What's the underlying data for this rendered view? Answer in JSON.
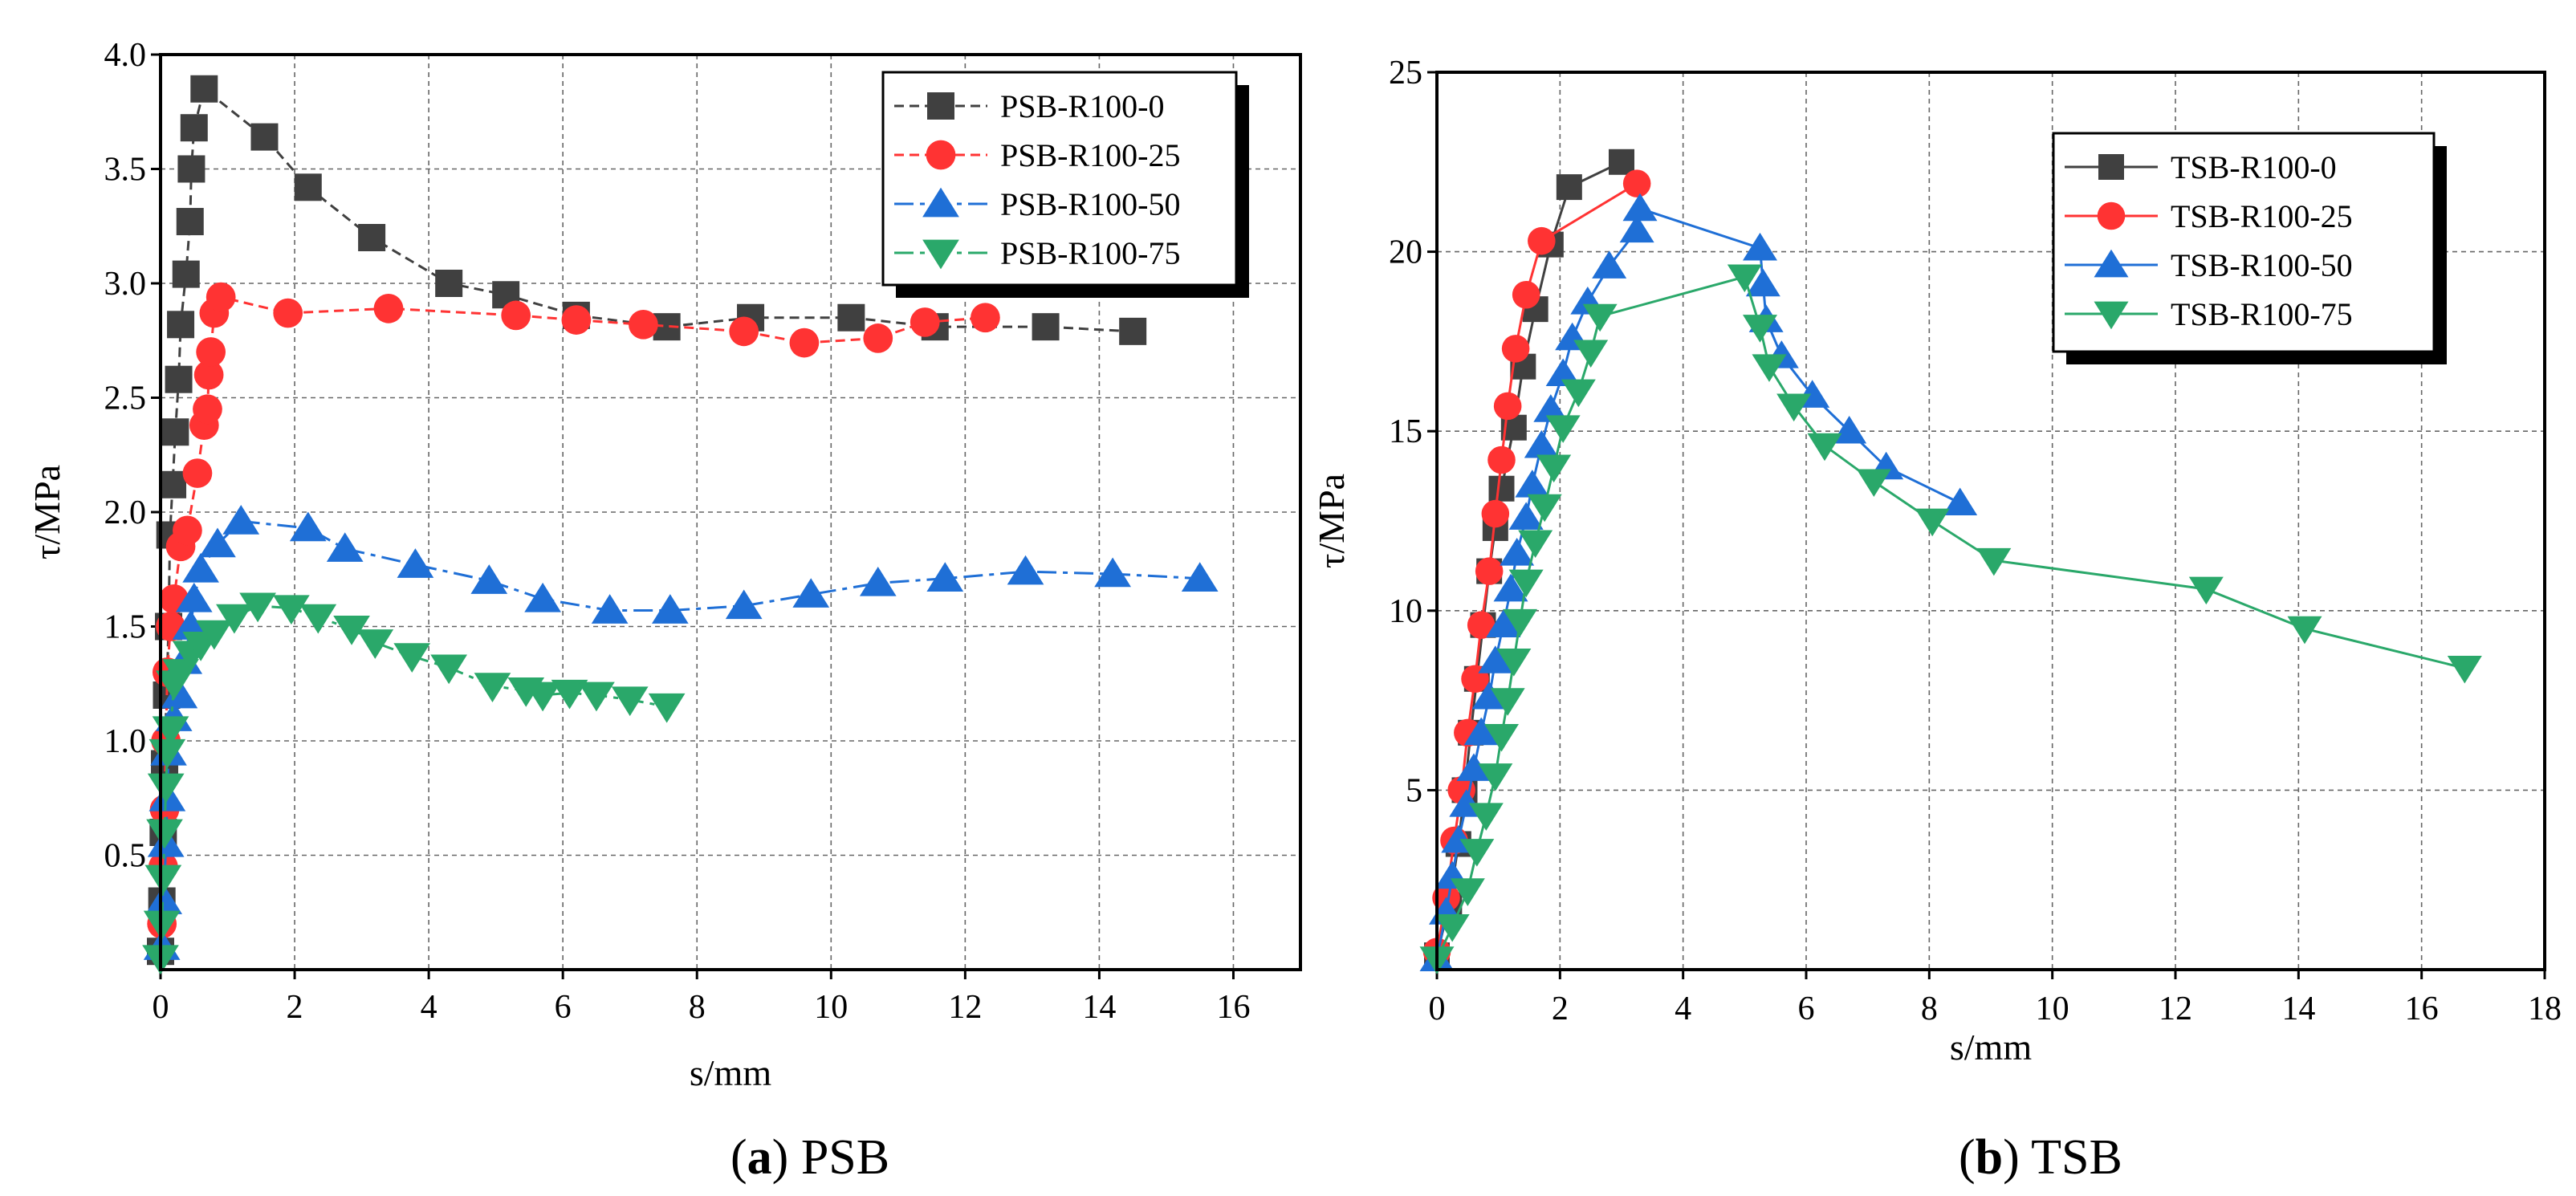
{
  "chart_data": [
    {
      "type": "line",
      "xlabel": "s/mm",
      "ylabel": "τ/MPa",
      "xlim": [
        0,
        17
      ],
      "ylim": [
        0,
        4.0
      ],
      "xticks": [
        "0",
        "2",
        "4",
        "6",
        "8",
        "10",
        "12",
        "14",
        "16"
      ],
      "yticks": [
        "0.5",
        "1.0",
        "1.5",
        "2.0",
        "2.5",
        "3.0",
        "3.5",
        "4.0"
      ],
      "grid": true,
      "legend_position": "top-right",
      "caption": {
        "letter": "a",
        "text": " PSB"
      },
      "series": [
        {
          "name": "PSB-R100-0",
          "color": "#404040",
          "marker": "square",
          "dash": "12 7",
          "points": [
            [
              0.0,
              0.08
            ],
            [
              0.02,
              0.3
            ],
            [
              0.04,
              0.6
            ],
            [
              0.06,
              0.9
            ],
            [
              0.09,
              1.2
            ],
            [
              0.12,
              1.5
            ],
            [
              0.14,
              1.9
            ],
            [
              0.18,
              2.12
            ],
            [
              0.22,
              2.35
            ],
            [
              0.27,
              2.58
            ],
            [
              0.3,
              2.82
            ],
            [
              0.38,
              3.04
            ],
            [
              0.44,
              3.27
            ],
            [
              0.46,
              3.5
            ],
            [
              0.5,
              3.68
            ],
            [
              0.65,
              3.85
            ],
            [
              1.55,
              3.64
            ],
            [
              2.2,
              3.42
            ],
            [
              3.15,
              3.2
            ],
            [
              4.3,
              3.0
            ],
            [
              5.15,
              2.95
            ],
            [
              6.2,
              2.86
            ],
            [
              7.55,
              2.81
            ],
            [
              8.8,
              2.85
            ],
            [
              10.3,
              2.85
            ],
            [
              11.55,
              2.81
            ],
            [
              13.2,
              2.81
            ],
            [
              14.5,
              2.79
            ]
          ]
        },
        {
          "name": "PSB-R100-25",
          "color": "#ff3333",
          "marker": "circle",
          "dash": "12 7",
          "points": [
            [
              0.02,
              0.2
            ],
            [
              0.04,
              0.45
            ],
            [
              0.06,
              0.7
            ],
            [
              0.08,
              1.0
            ],
            [
              0.1,
              1.3
            ],
            [
              0.15,
              1.5
            ],
            [
              0.2,
              1.62
            ],
            [
              0.3,
              1.85
            ],
            [
              0.4,
              1.92
            ],
            [
              0.55,
              2.17
            ],
            [
              0.65,
              2.38
            ],
            [
              0.7,
              2.45
            ],
            [
              0.72,
              2.6
            ],
            [
              0.75,
              2.7
            ],
            [
              0.8,
              2.87
            ],
            [
              0.9,
              2.94
            ],
            [
              1.9,
              2.87
            ],
            [
              3.4,
              2.89
            ],
            [
              5.3,
              2.86
            ],
            [
              6.2,
              2.84
            ],
            [
              7.2,
              2.82
            ],
            [
              8.7,
              2.79
            ],
            [
              9.6,
              2.74
            ],
            [
              10.7,
              2.76
            ],
            [
              11.4,
              2.83
            ],
            [
              12.3,
              2.85
            ]
          ]
        },
        {
          "name": "PSB-R100-50",
          "color": "#1f6fd6",
          "marker": "triangle-up",
          "dash": "24 8 6 8",
          "points": [
            [
              0.02,
              0.1
            ],
            [
              0.05,
              0.3
            ],
            [
              0.08,
              0.55
            ],
            [
              0.1,
              0.75
            ],
            [
              0.12,
              0.95
            ],
            [
              0.2,
              1.1
            ],
            [
              0.28,
              1.2
            ],
            [
              0.35,
              1.35
            ],
            [
              0.45,
              1.5
            ],
            [
              0.5,
              1.62
            ],
            [
              0.6,
              1.75
            ],
            [
              0.85,
              1.86
            ],
            [
              1.2,
              1.96
            ],
            [
              2.2,
              1.93
            ],
            [
              2.75,
              1.84
            ],
            [
              3.8,
              1.77
            ],
            [
              4.9,
              1.7
            ],
            [
              5.7,
              1.62
            ],
            [
              6.7,
              1.57
            ],
            [
              7.6,
              1.57
            ],
            [
              8.7,
              1.59
            ],
            [
              9.7,
              1.64
            ],
            [
              10.7,
              1.69
            ],
            [
              11.7,
              1.71
            ],
            [
              12.9,
              1.74
            ],
            [
              14.2,
              1.73
            ],
            [
              15.5,
              1.71
            ]
          ]
        },
        {
          "name": "PSB-R100-75",
          "color": "#2aa86a",
          "marker": "triangle-down",
          "dash": "24 8 6 8",
          "points": [
            [
              0.0,
              0.05
            ],
            [
              0.02,
              0.2
            ],
            [
              0.04,
              0.4
            ],
            [
              0.06,
              0.6
            ],
            [
              0.08,
              0.8
            ],
            [
              0.1,
              0.95
            ],
            [
              0.15,
              1.05
            ],
            [
              0.2,
              1.25
            ],
            [
              0.3,
              1.3
            ],
            [
              0.45,
              1.38
            ],
            [
              0.6,
              1.42
            ],
            [
              0.8,
              1.47
            ],
            [
              1.1,
              1.54
            ],
            [
              1.45,
              1.59
            ],
            [
              1.95,
              1.58
            ],
            [
              2.35,
              1.54
            ],
            [
              2.85,
              1.49
            ],
            [
              3.2,
              1.43
            ],
            [
              3.75,
              1.37
            ],
            [
              4.3,
              1.32
            ],
            [
              4.95,
              1.24
            ],
            [
              5.45,
              1.22
            ],
            [
              5.7,
              1.2
            ],
            [
              6.1,
              1.21
            ],
            [
              6.5,
              1.2
            ],
            [
              7.0,
              1.18
            ],
            [
              7.55,
              1.15
            ]
          ]
        }
      ]
    },
    {
      "type": "line",
      "xlabel": "s/mm",
      "ylabel": "τ/MPa",
      "xlim": [
        0,
        18
      ],
      "ylim": [
        0,
        25
      ],
      "xticks": [
        "0",
        "2",
        "4",
        "6",
        "8",
        "10",
        "12",
        "14",
        "16",
        "18"
      ],
      "yticks": [
        "5",
        "10",
        "15",
        "20",
        "25"
      ],
      "grid": true,
      "legend_position": "top-right",
      "caption": {
        "letter": "b",
        "text": " TSB"
      },
      "series": [
        {
          "name": "TSB-R100-0",
          "color": "#404040",
          "marker": "square",
          "dash": "",
          "points": [
            [
              0.0,
              0.4
            ],
            [
              0.2,
              1.8
            ],
            [
              0.35,
              3.5
            ],
            [
              0.45,
              5.0
            ],
            [
              0.55,
              6.6
            ],
            [
              0.65,
              8.1
            ],
            [
              0.75,
              9.6
            ],
            [
              0.85,
              11.1
            ],
            [
              0.95,
              12.3
            ],
            [
              1.05,
              13.4
            ],
            [
              1.25,
              15.1
            ],
            [
              1.4,
              16.8
            ],
            [
              1.6,
              18.4
            ],
            [
              1.85,
              20.2
            ],
            [
              2.15,
              21.8
            ],
            [
              3.0,
              22.5
            ]
          ]
        },
        {
          "name": "TSB-R100-25",
          "color": "#ff3333",
          "marker": "circle",
          "dash": "",
          "points": [
            [
              0.0,
              0.5
            ],
            [
              0.15,
              2.0
            ],
            [
              0.28,
              3.6
            ],
            [
              0.4,
              5.0
            ],
            [
              0.5,
              6.6
            ],
            [
              0.62,
              8.1
            ],
            [
              0.72,
              9.6
            ],
            [
              0.85,
              11.1
            ],
            [
              0.95,
              12.7
            ],
            [
              1.05,
              14.2
            ],
            [
              1.15,
              15.7
            ],
            [
              1.28,
              17.3
            ],
            [
              1.45,
              18.8
            ],
            [
              1.7,
              20.3
            ],
            [
              3.25,
              21.9
            ]
          ]
        },
        {
          "name": "TSB-R100-50",
          "color": "#1f6fd6",
          "marker": "triangle-up",
          "dash": "",
          "points": [
            [
              0.0,
              0.3
            ],
            [
              0.15,
              1.6
            ],
            [
              0.25,
              2.6
            ],
            [
              0.35,
              3.6
            ],
            [
              0.48,
              4.6
            ],
            [
              0.6,
              5.6
            ],
            [
              0.72,
              6.6
            ],
            [
              0.85,
              7.6
            ],
            [
              0.95,
              8.6
            ],
            [
              1.08,
              9.6
            ],
            [
              1.2,
              10.6
            ],
            [
              1.3,
              11.6
            ],
            [
              1.45,
              12.6
            ],
            [
              1.55,
              13.5
            ],
            [
              1.7,
              14.6
            ],
            [
              1.85,
              15.6
            ],
            [
              2.05,
              16.6
            ],
            [
              2.2,
              17.6
            ],
            [
              2.45,
              18.6
            ],
            [
              2.8,
              19.6
            ],
            [
              3.25,
              20.6
            ],
            [
              3.3,
              21.2
            ],
            [
              5.25,
              20.1
            ],
            [
              5.3,
              19.1
            ],
            [
              5.35,
              18.1
            ],
            [
              5.6,
              17.1
            ],
            [
              6.1,
              16.0
            ],
            [
              6.7,
              15.0
            ],
            [
              7.3,
              14.0
            ],
            [
              8.5,
              13.0
            ]
          ]
        },
        {
          "name": "TSB-R100-75",
          "color": "#2aa86a",
          "marker": "triangle-down",
          "dash": "",
          "points": [
            [
              0.0,
              0.3
            ],
            [
              0.25,
              1.2
            ],
            [
              0.5,
              2.2
            ],
            [
              0.65,
              3.3
            ],
            [
              0.8,
              4.3
            ],
            [
              0.95,
              5.4
            ],
            [
              1.05,
              6.5
            ],
            [
              1.15,
              7.5
            ],
            [
              1.25,
              8.6
            ],
            [
              1.35,
              9.7
            ],
            [
              1.45,
              10.8
            ],
            [
              1.6,
              11.9
            ],
            [
              1.75,
              12.9
            ],
            [
              1.9,
              14.0
            ],
            [
              2.05,
              15.1
            ],
            [
              2.3,
              16.1
            ],
            [
              2.5,
              17.2
            ],
            [
              2.65,
              18.2
            ],
            [
              5.0,
              19.3
            ],
            [
              5.25,
              17.9
            ],
            [
              5.4,
              16.8
            ],
            [
              5.8,
              15.7
            ],
            [
              6.3,
              14.6
            ],
            [
              7.1,
              13.6
            ],
            [
              8.05,
              12.5
            ],
            [
              9.05,
              11.4
            ],
            [
              12.5,
              10.6
            ],
            [
              14.1,
              9.5
            ],
            [
              16.7,
              8.4
            ]
          ]
        }
      ]
    }
  ]
}
